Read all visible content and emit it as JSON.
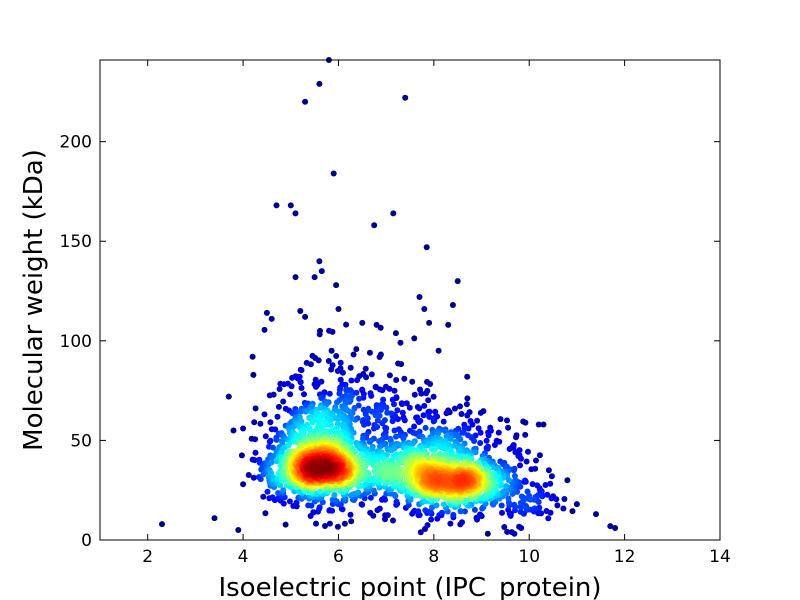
{
  "chart_data": {
    "type": "scatter",
    "title": "",
    "xlabel": "Isoelectric point (IPC_protein)",
    "ylabel": "Molecular weight (kDa)",
    "xlim": [
      1,
      14
    ],
    "ylim": [
      0,
      241
    ],
    "xticks": [
      2,
      4,
      6,
      8,
      10,
      12,
      14
    ],
    "yticks": [
      0,
      50,
      100,
      150,
      200
    ],
    "grid": false,
    "legend": "none",
    "color_encoding": "point density (jet colormap: blue = low, red = high)",
    "colormap": [
      "#00007f",
      "#0000ff",
      "#007fff",
      "#00ffff",
      "#7fff7f",
      "#ffff00",
      "#ff7f00",
      "#ff0000",
      "#7f0000"
    ],
    "density_peaks": [
      {
        "x": 5.6,
        "y": 33
      },
      {
        "x": 8.3,
        "y": 27
      }
    ],
    "outliers": [
      {
        "x": 2.3,
        "y": 8
      },
      {
        "x": 3.4,
        "y": 11
      },
      {
        "x": 3.7,
        "y": 72
      },
      {
        "x": 3.8,
        "y": 55
      },
      {
        "x": 3.9,
        "y": 5
      },
      {
        "x": 4.0,
        "y": 56
      },
      {
        "x": 4.0,
        "y": 28
      },
      {
        "x": 4.2,
        "y": 92
      },
      {
        "x": 4.5,
        "y": 114
      },
      {
        "x": 4.6,
        "y": 111
      },
      {
        "x": 4.7,
        "y": 168
      },
      {
        "x": 5.0,
        "y": 168
      },
      {
        "x": 5.1,
        "y": 164
      },
      {
        "x": 5.1,
        "y": 132
      },
      {
        "x": 5.2,
        "y": 115
      },
      {
        "x": 5.3,
        "y": 112
      },
      {
        "x": 5.3,
        "y": 220
      },
      {
        "x": 5.5,
        "y": 132
      },
      {
        "x": 5.6,
        "y": 140
      },
      {
        "x": 5.6,
        "y": 229
      },
      {
        "x": 5.65,
        "y": 135
      },
      {
        "x": 5.8,
        "y": 241
      },
      {
        "x": 5.9,
        "y": 184
      },
      {
        "x": 5.95,
        "y": 128
      },
      {
        "x": 6.0,
        "y": 116
      },
      {
        "x": 6.5,
        "y": 109
      },
      {
        "x": 6.75,
        "y": 158
      },
      {
        "x": 6.8,
        "y": 108
      },
      {
        "x": 7.15,
        "y": 164
      },
      {
        "x": 7.3,
        "y": 99
      },
      {
        "x": 7.4,
        "y": 222
      },
      {
        "x": 7.7,
        "y": 122
      },
      {
        "x": 7.8,
        "y": 116
      },
      {
        "x": 7.85,
        "y": 147
      },
      {
        "x": 7.9,
        "y": 109
      },
      {
        "x": 8.1,
        "y": 95
      },
      {
        "x": 8.3,
        "y": 108
      },
      {
        "x": 8.4,
        "y": 118
      },
      {
        "x": 8.5,
        "y": 130
      },
      {
        "x": 8.7,
        "y": 82
      },
      {
        "x": 10.2,
        "y": 58
      },
      {
        "x": 10.3,
        "y": 58
      },
      {
        "x": 10.5,
        "y": 22
      },
      {
        "x": 10.8,
        "y": 30
      },
      {
        "x": 11.0,
        "y": 18
      },
      {
        "x": 11.4,
        "y": 13
      },
      {
        "x": 11.7,
        "y": 7
      },
      {
        "x": 11.8,
        "y": 6
      }
    ]
  }
}
